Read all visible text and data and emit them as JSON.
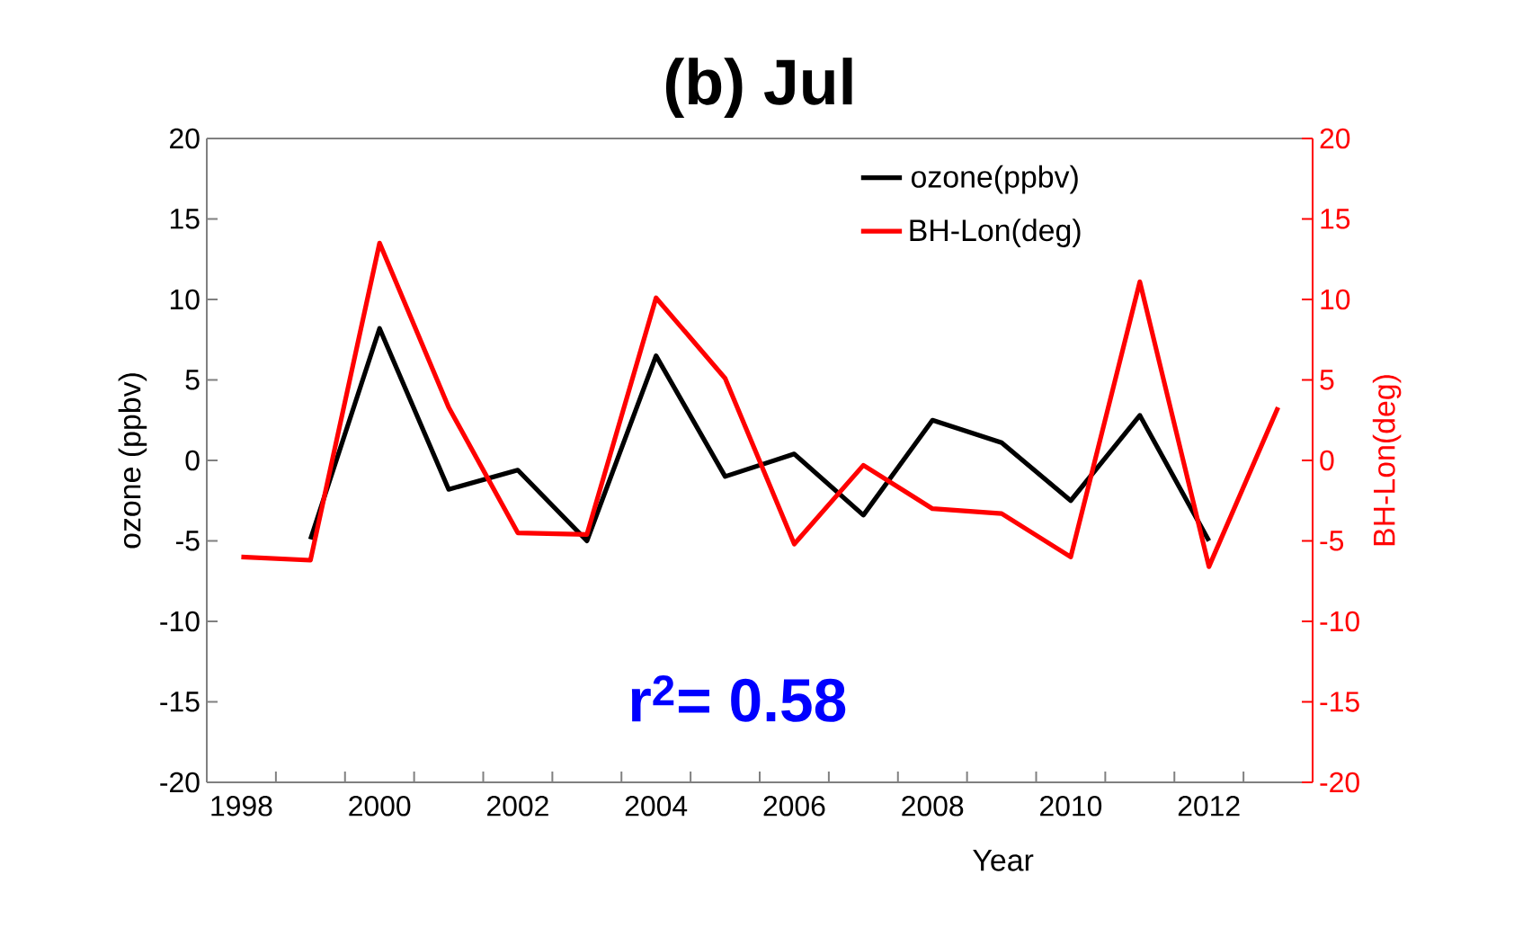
{
  "chart_data": {
    "type": "line",
    "title": "(b) Jul",
    "xlabel": "Year",
    "ylabel": "ozone (ppbv)",
    "y2label": "BH-Lon(deg)",
    "categories": [
      "1998",
      null,
      "2000",
      null,
      "2002",
      null,
      "2004",
      null,
      "2006",
      null,
      "2008",
      null,
      "2010",
      null,
      "2012",
      null
    ],
    "series": [
      {
        "name": "ozone(ppbv)",
        "color": "#000000",
        "values": [
          null,
          -4.9,
          8.2,
          -1.8,
          -0.6,
          -5.0,
          6.5,
          -1.0,
          0.4,
          -3.4,
          2.5,
          1.1,
          -2.5,
          2.8,
          -5.0,
          null
        ]
      },
      {
        "name": "BH-Lon(deg)",
        "color": "#ff0000",
        "axis": "y2",
        "values": [
          -6.0,
          -6.2,
          13.5,
          3.3,
          -4.5,
          -4.6,
          10.1,
          5.1,
          -5.2,
          -0.3,
          -3.0,
          -3.3,
          -6.0,
          11.1,
          -6.6,
          3.3
        ]
      }
    ],
    "ylim": [
      -20,
      20
    ],
    "yticks": [
      -20,
      -15,
      -10,
      -5,
      0,
      5,
      10,
      15,
      20
    ],
    "y2lim": [
      -20,
      20
    ],
    "y2ticks": [
      -20,
      -15,
      -10,
      -5,
      0,
      5,
      10,
      15,
      20
    ],
    "legend": "top right",
    "grid": false,
    "marker": "none",
    "line_style": "solid",
    "annotations": [
      "r$^{2}$= 0.58"
    ]
  }
}
